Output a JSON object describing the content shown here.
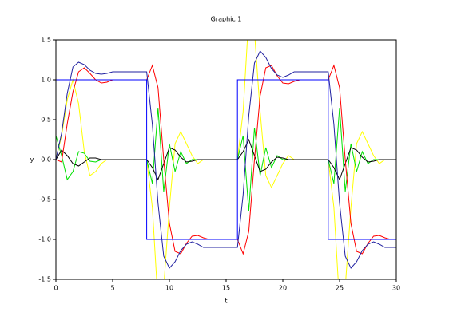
{
  "chart_data": {
    "type": "line",
    "title": "Graphic 1",
    "x_label": "t",
    "y_label": "y",
    "x": [
      0,
      0.5,
      1,
      1.5,
      2,
      2.5,
      3,
      3.5,
      4,
      4.5,
      5,
      5.5,
      6,
      6.5,
      7,
      7.5,
      8,
      8.5,
      9,
      9.5,
      10,
      10.5,
      11,
      11.5,
      12,
      12.5,
      13,
      13.5,
      14,
      14.5,
      15,
      15.5,
      16,
      16.5,
      17,
      17.5,
      18,
      18.5,
      19,
      19.5,
      20,
      20.5,
      21,
      21.5,
      22,
      22.5,
      23,
      23.5,
      24,
      24.5,
      25,
      25.5,
      26,
      26.5,
      27,
      27.5,
      28,
      28.5,
      29,
      29.5,
      30
    ],
    "xlim": [
      0,
      30
    ],
    "xticks": [
      0,
      5,
      10,
      15,
      20,
      25,
      30
    ],
    "ylim": [
      -1.5,
      1.5
    ],
    "yticks": [
      -1.5,
      {
        "value": -1,
        "label": "-1.0"
      },
      -0.5,
      {
        "value": 0,
        "label": "0.0"
      },
      0.5,
      {
        "value": 1,
        "label": "1.0"
      },
      1.5
    ],
    "series": [
      {
        "color": "#ffff00",
        "values": [
          0,
          0.3,
          0.75,
          1.0,
          0.7,
          0.1,
          -0.2,
          -0.15,
          -0.05,
          0,
          0,
          0,
          0,
          0,
          0,
          0,
          0,
          -0.6,
          -1.8,
          -1.6,
          -0.6,
          0.2,
          0.35,
          0.2,
          0.05,
          -0.05,
          0,
          0,
          0,
          0,
          0,
          0,
          0,
          0.6,
          1.8,
          1.6,
          0.6,
          -0.2,
          -0.35,
          -0.2,
          -0.05,
          0.05,
          0,
          0,
          0,
          0,
          0,
          0,
          0,
          -0.6,
          -1.8,
          -1.6,
          -0.6,
          0.2,
          0.35,
          0.2,
          0.05,
          -0.05,
          0,
          0,
          0
        ]
      },
      {
        "color": "#00e000",
        "values": [
          0.3,
          0.05,
          -0.25,
          -0.15,
          0.1,
          0.08,
          -0.02,
          -0.03,
          0,
          0,
          0,
          0,
          0,
          0,
          0,
          0,
          0,
          -0.3,
          0.65,
          -0.4,
          0.2,
          -0.15,
          0.1,
          -0.05,
          0,
          0,
          0,
          0,
          0,
          0,
          0,
          0,
          0,
          0.3,
          -0.65,
          0.4,
          -0.2,
          0.15,
          -0.1,
          0.05,
          0,
          0,
          0,
          0,
          0,
          0,
          0,
          0,
          0,
          -0.3,
          0.65,
          -0.4,
          0.2,
          -0.15,
          0.1,
          -0.05,
          0,
          0,
          0,
          0,
          0
        ]
      },
      {
        "color": "#000000",
        "values": [
          0,
          0.12,
          0.05,
          -0.05,
          -0.08,
          -0.03,
          0.02,
          0.02,
          0,
          0,
          0,
          0,
          0,
          0,
          0,
          0,
          0,
          -0.1,
          -0.25,
          -0.05,
          0.15,
          0.12,
          0.03,
          -0.03,
          -0.02,
          0,
          0,
          0,
          0,
          0,
          0,
          0,
          0,
          0.1,
          0.25,
          0.05,
          -0.15,
          -0.12,
          -0.03,
          0.03,
          0.02,
          0,
          0,
          0,
          0,
          0,
          0,
          0,
          0,
          -0.1,
          -0.25,
          -0.05,
          0.15,
          0.12,
          0.03,
          -0.03,
          -0.02,
          0,
          0,
          0,
          0
        ]
      },
      {
        "color": "#ff0000",
        "values": [
          0,
          -0.03,
          0.45,
          0.85,
          1.1,
          1.15,
          1.08,
          1.0,
          0.96,
          0.97,
          1,
          1,
          1,
          1,
          1,
          1,
          1,
          1.18,
          0.9,
          0,
          -0.8,
          -1.15,
          -1.18,
          -1.05,
          -0.96,
          -0.95,
          -0.98,
          -1,
          -1,
          -1,
          -1,
          -1,
          -1,
          -1.18,
          -0.9,
          0,
          0.8,
          1.15,
          1.18,
          1.05,
          0.96,
          0.95,
          0.98,
          1,
          1,
          1,
          1,
          1,
          1,
          1.18,
          0.9,
          0,
          -0.8,
          -1.15,
          -1.18,
          -1.05,
          -0.96,
          -0.95,
          -0.98,
          -1,
          -1
        ]
      },
      {
        "color": "#0000ff",
        "x": [
          0,
          8,
          8,
          16,
          16,
          24,
          24,
          30
        ],
        "values": [
          1,
          1,
          -1,
          -1,
          1,
          1,
          -1,
          -1
        ]
      },
      {
        "color": "#2020a0",
        "values": [
          0,
          0.33,
          0.83,
          1.16,
          1.22,
          1.19,
          1.12,
          1.08,
          1.07,
          1.08,
          1.1,
          1.1,
          1.1,
          1.1,
          1.1,
          1.1,
          1.1,
          0.44,
          -0.55,
          -1.21,
          -1.36,
          -1.28,
          -1.14,
          -1.06,
          -1.03,
          -1.06,
          -1.1,
          -1.1,
          -1.1,
          -1.1,
          -1.1,
          -1.1,
          -1.1,
          -0.44,
          0.55,
          1.21,
          1.36,
          1.28,
          1.14,
          1.06,
          1.03,
          1.06,
          1.1,
          1.1,
          1.1,
          1.1,
          1.1,
          1.1,
          1.1,
          0.44,
          -0.55,
          -1.21,
          -1.36,
          -1.28,
          -1.14,
          -1.06,
          -1.03,
          -1.06,
          -1.1,
          -1.1,
          -1.1
        ]
      }
    ]
  }
}
